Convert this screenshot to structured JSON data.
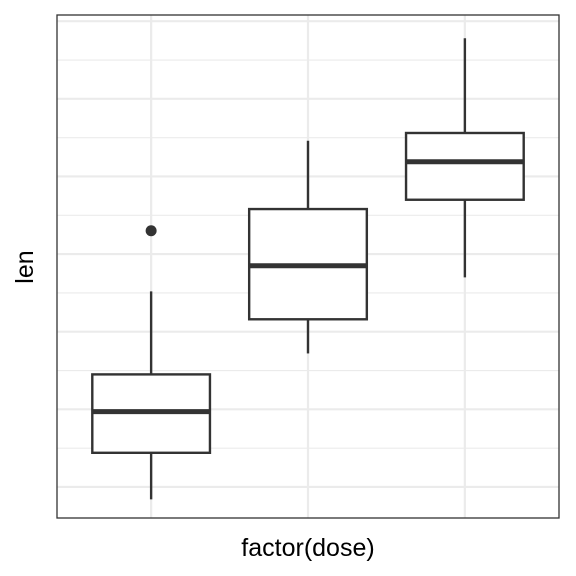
{
  "chart_data": {
    "type": "boxplot",
    "xlabel": "factor(dose)",
    "ylabel": "len",
    "categories": [
      "",
      "",
      ""
    ],
    "ylim": [
      3.0,
      35.4
    ],
    "grid": true,
    "boxes": [
      {
        "min": 4.2,
        "q1": 7.2,
        "median": 9.85,
        "q3": 12.25,
        "max": 17.6,
        "outliers": [
          21.5
        ]
      },
      {
        "min": 13.6,
        "q1": 15.8,
        "median": 19.25,
        "q3": 22.9,
        "max": 27.3,
        "outliers": []
      },
      {
        "min": 18.5,
        "q1": 23.5,
        "median": 25.95,
        "q3": 27.8,
        "max": 33.9,
        "outliers": []
      }
    ]
  }
}
